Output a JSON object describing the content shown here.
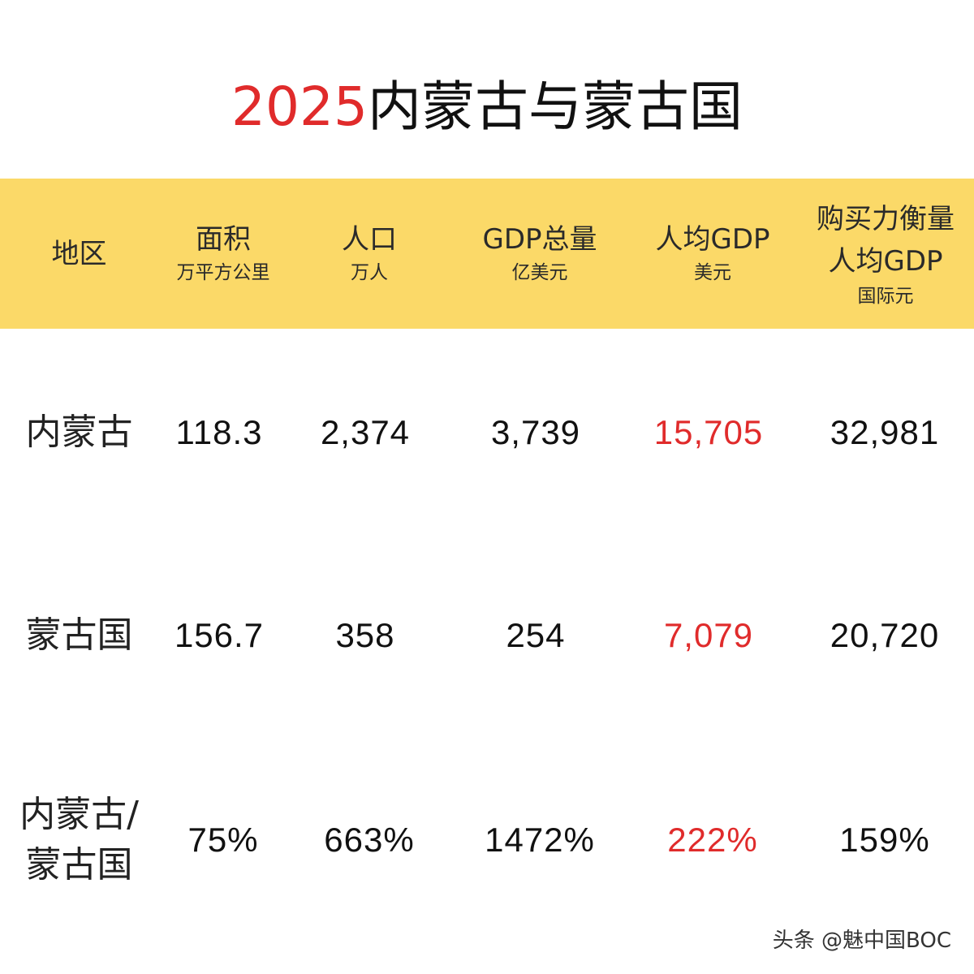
{
  "title": {
    "year": "2025",
    "text": "内蒙古与蒙古国"
  },
  "chart_data": {
    "type": "table",
    "columns": [
      {
        "label": "地区",
        "unit": ""
      },
      {
        "label": "面积",
        "unit": "万平方公里"
      },
      {
        "label": "人口",
        "unit": "万人"
      },
      {
        "label": "GDP总量",
        "unit": "亿美元"
      },
      {
        "label": "人均GDP",
        "unit": "美元"
      },
      {
        "label_line1": "购买力衡量",
        "label_line2": "人均GDP",
        "unit": "国际元"
      }
    ],
    "rows": [
      {
        "region": "内蒙古",
        "area": "118.3",
        "population": "2,374",
        "gdp": "3,739",
        "gdp_per_capita": "15,705",
        "ppp_gdp_per_capita": "32,981"
      },
      {
        "region": "蒙古国",
        "area": "156.7",
        "population": "358",
        "gdp": "254",
        "gdp_per_capita": "7,079",
        "ppp_gdp_per_capita": "20,720"
      },
      {
        "region_line1": "内蒙古/",
        "region_line2": "蒙古国",
        "area": "75%",
        "population": "663%",
        "gdp": "1472%",
        "gdp_per_capita": "222%",
        "ppp_gdp_per_capita": "159%"
      }
    ],
    "colors": {
      "header_background": "#fbd968",
      "highlight": "#e02b2b",
      "text": "#111111"
    }
  },
  "footer": {
    "watermark": "头条 @魅中国BOC"
  }
}
